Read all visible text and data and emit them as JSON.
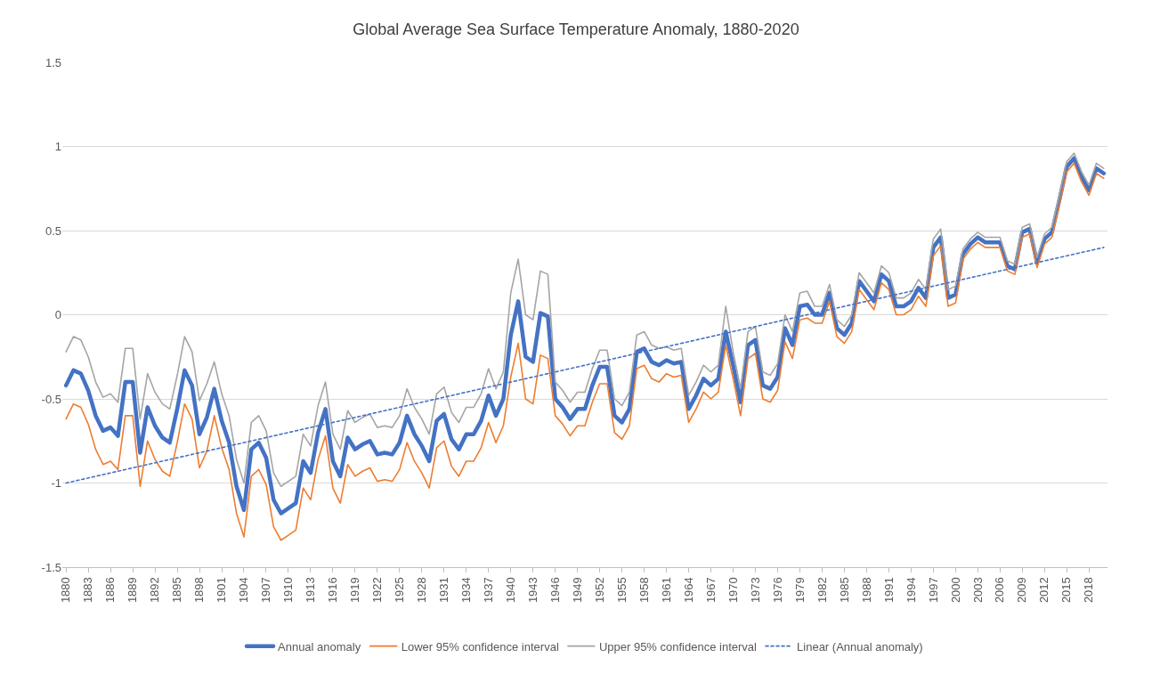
{
  "chart_data": {
    "type": "line",
    "title": "Global Average Sea Surface Temperature Anomaly, 1880-2020",
    "legend": "bottom",
    "grid": "y",
    "ylim": [
      -1.5,
      1.5
    ],
    "yticks": [
      -1.5,
      -1,
      -0.5,
      0,
      0.5,
      1,
      1.5
    ],
    "xlim": [
      1879.5,
      2020.5
    ],
    "xticks": [
      1880,
      1883,
      1886,
      1889,
      1892,
      1895,
      1898,
      1901,
      1904,
      1907,
      1910,
      1913,
      1916,
      1919,
      1922,
      1925,
      1928,
      1931,
      1934,
      1937,
      1940,
      1943,
      1946,
      1949,
      1952,
      1955,
      1958,
      1961,
      1964,
      1967,
      1970,
      1973,
      1976,
      1979,
      1982,
      1985,
      1988,
      1991,
      1994,
      1997,
      2000,
      2003,
      2006,
      2009,
      2012,
      2015,
      2018
    ],
    "x": [
      1880,
      1881,
      1882,
      1883,
      1884,
      1885,
      1886,
      1887,
      1888,
      1889,
      1890,
      1891,
      1892,
      1893,
      1894,
      1895,
      1896,
      1897,
      1898,
      1899,
      1900,
      1901,
      1902,
      1903,
      1904,
      1905,
      1906,
      1907,
      1908,
      1909,
      1910,
      1911,
      1912,
      1913,
      1914,
      1915,
      1916,
      1917,
      1918,
      1919,
      1920,
      1921,
      1922,
      1923,
      1924,
      1925,
      1926,
      1927,
      1928,
      1929,
      1930,
      1931,
      1932,
      1933,
      1934,
      1935,
      1936,
      1937,
      1938,
      1939,
      1940,
      1941,
      1942,
      1943,
      1944,
      1945,
      1946,
      1947,
      1948,
      1949,
      1950,
      1951,
      1952,
      1953,
      1954,
      1955,
      1956,
      1957,
      1958,
      1959,
      1960,
      1961,
      1962,
      1963,
      1964,
      1965,
      1966,
      1967,
      1968,
      1969,
      1970,
      1971,
      1972,
      1973,
      1974,
      1975,
      1976,
      1977,
      1978,
      1979,
      1980,
      1981,
      1982,
      1983,
      1984,
      1985,
      1986,
      1987,
      1988,
      1989,
      1990,
      1991,
      1992,
      1993,
      1994,
      1995,
      1996,
      1997,
      1998,
      1999,
      2000,
      2001,
      2002,
      2003,
      2004,
      2005,
      2006,
      2007,
      2008,
      2009,
      2010,
      2011,
      2012,
      2013,
      2014,
      2015,
      2016,
      2017,
      2018,
      2019,
      2020
    ],
    "series": [
      {
        "name": "Annual anomaly",
        "color": "#4472c4",
        "values": [
          -0.42,
          -0.33,
          -0.35,
          -0.45,
          -0.6,
          -0.69,
          -0.67,
          -0.72,
          -0.4,
          -0.4,
          -0.82,
          -0.55,
          -0.66,
          -0.73,
          -0.76,
          -0.56,
          -0.33,
          -0.42,
          -0.71,
          -0.61,
          -0.44,
          -0.63,
          -0.76,
          -1.02,
          -1.16,
          -0.8,
          -0.76,
          -0.85,
          -1.1,
          -1.18,
          -1.15,
          -1.12,
          -0.87,
          -0.94,
          -0.7,
          -0.56,
          -0.87,
          -0.96,
          -0.73,
          -0.8,
          -0.77,
          -0.75,
          -0.83,
          -0.82,
          -0.83,
          -0.76,
          -0.6,
          -0.71,
          -0.78,
          -0.87,
          -0.63,
          -0.59,
          -0.74,
          -0.8,
          -0.71,
          -0.71,
          -0.63,
          -0.48,
          -0.6,
          -0.5,
          -0.12,
          0.08,
          -0.25,
          -0.28,
          0.01,
          -0.01,
          -0.5,
          -0.55,
          -0.62,
          -0.56,
          -0.56,
          -0.42,
          -0.31,
          -0.31,
          -0.6,
          -0.64,
          -0.56,
          -0.22,
          -0.2,
          -0.28,
          -0.3,
          -0.27,
          -0.29,
          -0.28,
          -0.56,
          -0.48,
          -0.38,
          -0.42,
          -0.38,
          -0.1,
          -0.3,
          -0.52,
          -0.18,
          -0.15,
          -0.42,
          -0.44,
          -0.37,
          -0.08,
          -0.18,
          0.05,
          0.06,
          0,
          0,
          0.13,
          -0.08,
          -0.12,
          -0.05,
          0.2,
          0.14,
          0.08,
          0.24,
          0.2,
          0.05,
          0.05,
          0.08,
          0.16,
          0.1,
          0.4,
          0.46,
          0.1,
          0.12,
          0.36,
          0.42,
          0.46,
          0.43,
          0.43,
          0.43,
          0.29,
          0.27,
          0.49,
          0.51,
          0.31,
          0.45,
          0.49,
          0.68,
          0.88,
          0.93,
          0.82,
          0.74,
          0.87,
          0.84
        ]
      },
      {
        "name": "Lower 95% confidence interval",
        "color": "#ed7d31",
        "values": [
          -0.62,
          -0.53,
          -0.55,
          -0.65,
          -0.8,
          -0.89,
          -0.87,
          -0.92,
          -0.6,
          -0.6,
          -1.02,
          -0.75,
          -0.86,
          -0.93,
          -0.96,
          -0.76,
          -0.53,
          -0.62,
          -0.91,
          -0.81,
          -0.6,
          -0.79,
          -0.92,
          -1.18,
          -1.32,
          -0.96,
          -0.92,
          -1.01,
          -1.26,
          -1.34,
          -1.31,
          -1.28,
          -1.03,
          -1.1,
          -0.86,
          -0.72,
          -1.03,
          -1.12,
          -0.89,
          -0.96,
          -0.93,
          -0.91,
          -0.99,
          -0.98,
          -0.99,
          -0.92,
          -0.76,
          -0.87,
          -0.94,
          -1.03,
          -0.79,
          -0.75,
          -0.9,
          -0.96,
          -0.87,
          -0.87,
          -0.79,
          -0.64,
          -0.76,
          -0.66,
          -0.37,
          -0.17,
          -0.5,
          -0.53,
          -0.24,
          -0.26,
          -0.6,
          -0.65,
          -0.72,
          -0.66,
          -0.66,
          -0.52,
          -0.41,
          -0.41,
          -0.7,
          -0.74,
          -0.66,
          -0.32,
          -0.3,
          -0.38,
          -0.4,
          -0.35,
          -0.37,
          -0.36,
          -0.64,
          -0.56,
          -0.46,
          -0.5,
          -0.46,
          -0.18,
          -0.38,
          -0.6,
          -0.26,
          -0.23,
          -0.5,
          -0.52,
          -0.45,
          -0.16,
          -0.26,
          -0.03,
          -0.02,
          -0.05,
          -0.05,
          0.08,
          -0.13,
          -0.17,
          -0.1,
          0.15,
          0.09,
          0.03,
          0.19,
          0.15,
          0,
          0,
          0.03,
          0.11,
          0.05,
          0.35,
          0.41,
          0.05,
          0.07,
          0.33,
          0.39,
          0.43,
          0.4,
          0.4,
          0.4,
          0.26,
          0.24,
          0.46,
          0.48,
          0.28,
          0.42,
          0.46,
          0.65,
          0.85,
          0.9,
          0.79,
          0.71,
          0.84,
          0.81
        ]
      },
      {
        "name": "Upper 95% confidence interval",
        "color": "#a5a5a5",
        "values": [
          -0.22,
          -0.13,
          -0.15,
          -0.25,
          -0.4,
          -0.49,
          -0.47,
          -0.52,
          -0.2,
          -0.2,
          -0.62,
          -0.35,
          -0.46,
          -0.53,
          -0.56,
          -0.36,
          -0.13,
          -0.22,
          -0.51,
          -0.41,
          -0.28,
          -0.47,
          -0.6,
          -0.86,
          -1.0,
          -0.64,
          -0.6,
          -0.69,
          -0.94,
          -1.02,
          -0.99,
          -0.96,
          -0.71,
          -0.78,
          -0.54,
          -0.4,
          -0.71,
          -0.8,
          -0.57,
          -0.64,
          -0.61,
          -0.59,
          -0.67,
          -0.66,
          -0.67,
          -0.6,
          -0.44,
          -0.55,
          -0.62,
          -0.71,
          -0.47,
          -0.43,
          -0.58,
          -0.64,
          -0.55,
          -0.55,
          -0.47,
          -0.32,
          -0.44,
          -0.34,
          0.13,
          0.33,
          0.0,
          -0.03,
          0.26,
          0.24,
          -0.4,
          -0.45,
          -0.52,
          -0.46,
          -0.46,
          -0.32,
          -0.21,
          -0.21,
          -0.5,
          -0.54,
          -0.46,
          -0.12,
          -0.1,
          -0.18,
          -0.2,
          -0.19,
          -0.21,
          -0.2,
          -0.48,
          -0.4,
          -0.3,
          -0.34,
          -0.3,
          0.05,
          -0.22,
          -0.44,
          -0.1,
          -0.07,
          -0.34,
          -0.36,
          -0.29,
          0.0,
          -0.1,
          0.13,
          0.14,
          0.05,
          0.05,
          0.18,
          -0.03,
          -0.07,
          0,
          0.25,
          0.19,
          0.13,
          0.29,
          0.25,
          0.1,
          0.1,
          0.13,
          0.21,
          0.15,
          0.45,
          0.51,
          0.15,
          0.17,
          0.39,
          0.45,
          0.49,
          0.46,
          0.46,
          0.46,
          0.32,
          0.3,
          0.52,
          0.54,
          0.34,
          0.48,
          0.52,
          0.71,
          0.91,
          0.96,
          0.85,
          0.77,
          0.9,
          0.87
        ]
      },
      {
        "name": "Linear (Annual anomaly)",
        "color": "#4472c4",
        "type": "line",
        "line_style": "dotted",
        "x": [
          1880,
          2020
        ],
        "values": [
          -1.0,
          0.4
        ]
      }
    ]
  }
}
